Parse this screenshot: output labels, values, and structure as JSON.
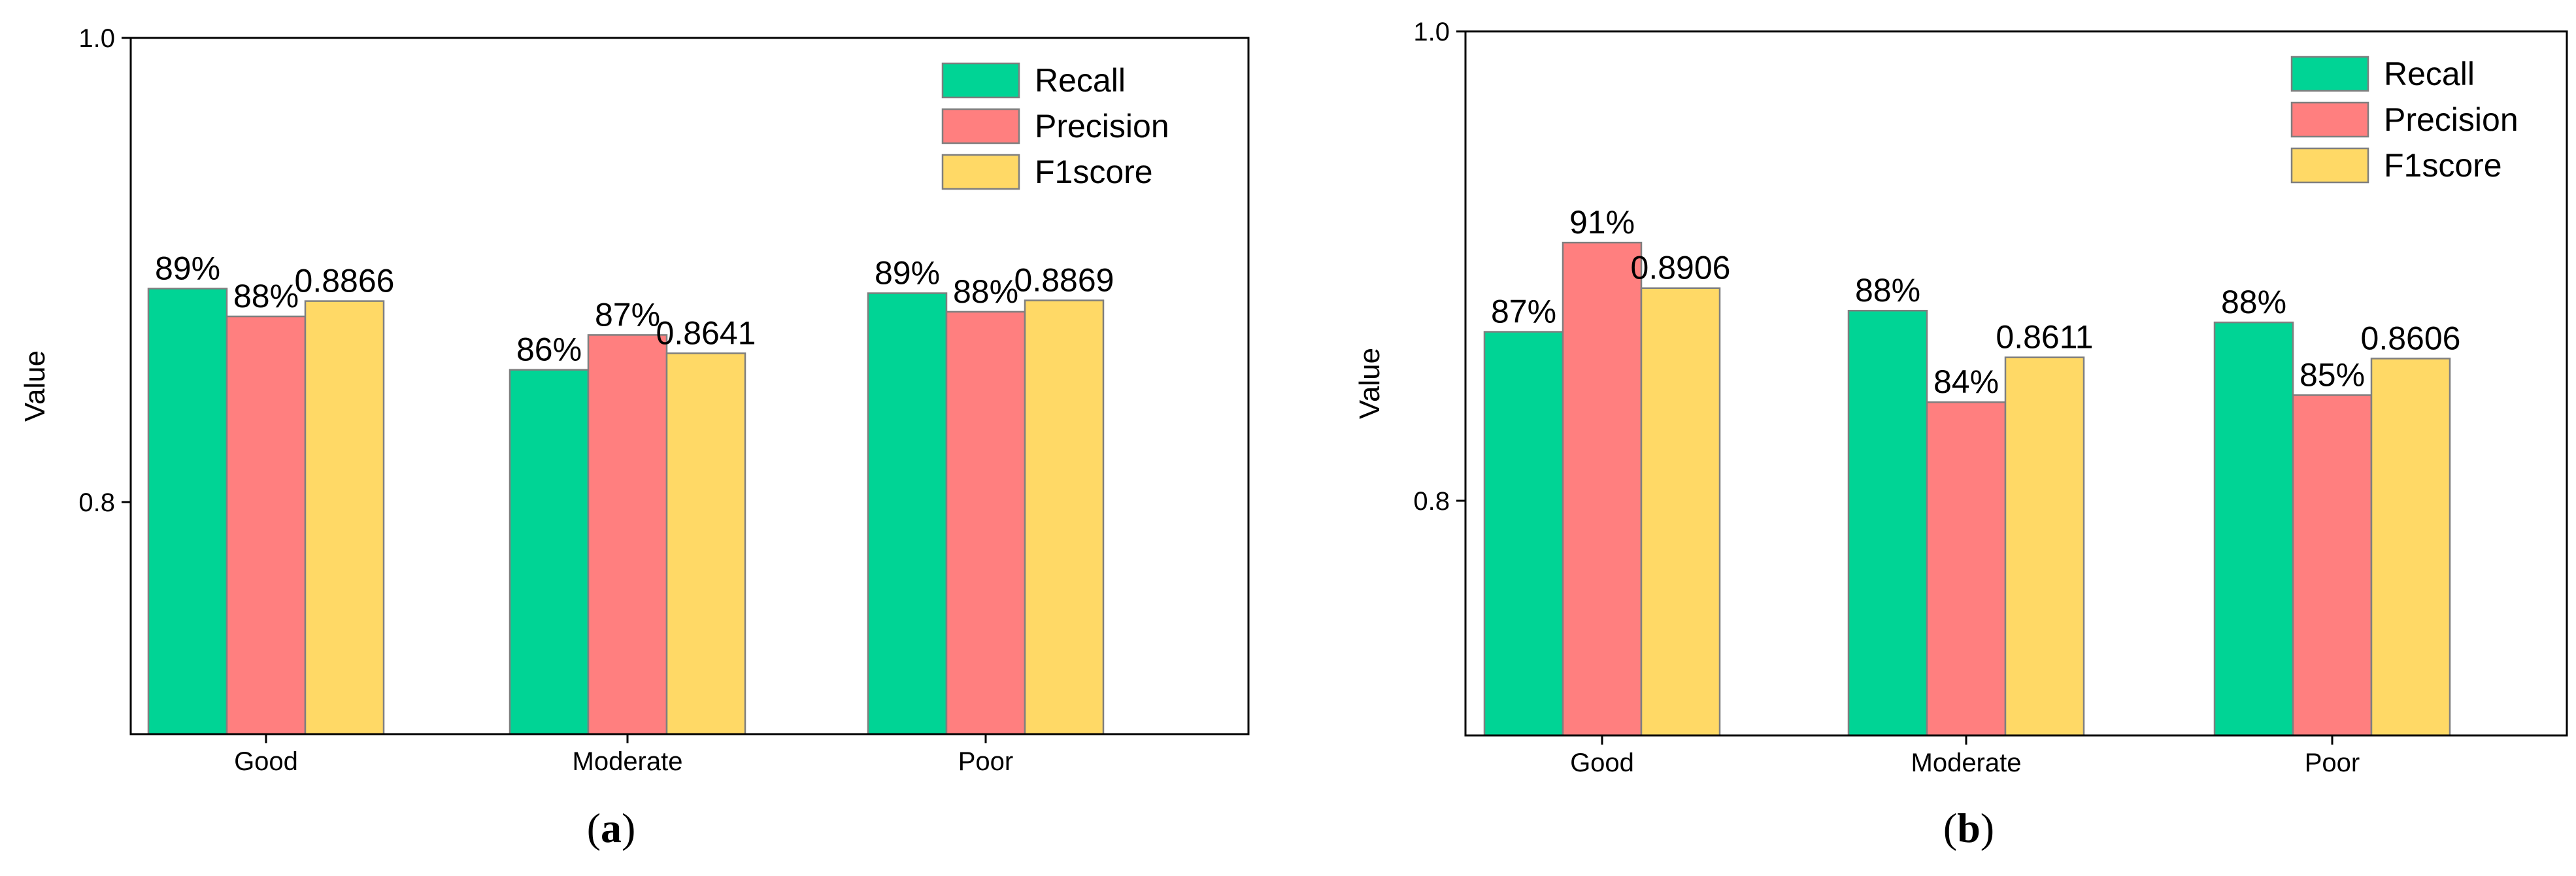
{
  "colors": {
    "recall": "#00D495",
    "precision": "#FF7F7F",
    "f1": "#FFD966",
    "bar_stroke": "#7f7f7f",
    "axis": "#000000"
  },
  "chart_data": [
    {
      "type": "bar",
      "panel": "a",
      "panel_label": "a",
      "categories": [
        "Good",
        "Moderate",
        "Poor"
      ],
      "ylabel": "Value",
      "ylim": [
        0.7,
        1.0
      ],
      "yticks": [
        0.8,
        1.0
      ],
      "ytick_labels": [
        "0.8",
        "1.0"
      ],
      "legend_position": "top-right",
      "series": [
        {
          "name": "Recall",
          "color_key": "recall",
          "values": [
            0.892,
            0.857,
            0.89
          ],
          "labels": [
            "89%",
            "86%",
            "89%"
          ]
        },
        {
          "name": "Precision",
          "color_key": "precision",
          "values": [
            0.88,
            0.872,
            0.882
          ],
          "labels": [
            "88%",
            "87%",
            "88%"
          ]
        },
        {
          "name": "F1score",
          "color_key": "f1",
          "values": [
            0.8866,
            0.8641,
            0.8869
          ],
          "labels": [
            "0.8866",
            "0.8641",
            "0.8869"
          ]
        }
      ]
    },
    {
      "type": "bar",
      "panel": "b",
      "panel_label": "b",
      "categories": [
        "Good",
        "Moderate",
        "Poor"
      ],
      "ylabel": "Value",
      "ylim": [
        0.7,
        1.0
      ],
      "yticks": [
        0.8,
        1.0
      ],
      "ytick_labels": [
        "0.8",
        "1.0"
      ],
      "legend_position": "top-right",
      "series": [
        {
          "name": "Recall",
          "color_key": "recall",
          "values": [
            0.872,
            0.881,
            0.876
          ],
          "labels": [
            "87%",
            "88%",
            "88%"
          ]
        },
        {
          "name": "Precision",
          "color_key": "precision",
          "values": [
            0.91,
            0.842,
            0.845
          ],
          "labels": [
            "91%",
            "84%",
            "85%"
          ]
        },
        {
          "name": "F1score",
          "color_key": "f1",
          "values": [
            0.8906,
            0.8611,
            0.8606
          ],
          "labels": [
            "0.8906",
            "0.8611",
            "0.8606"
          ]
        }
      ]
    }
  ]
}
